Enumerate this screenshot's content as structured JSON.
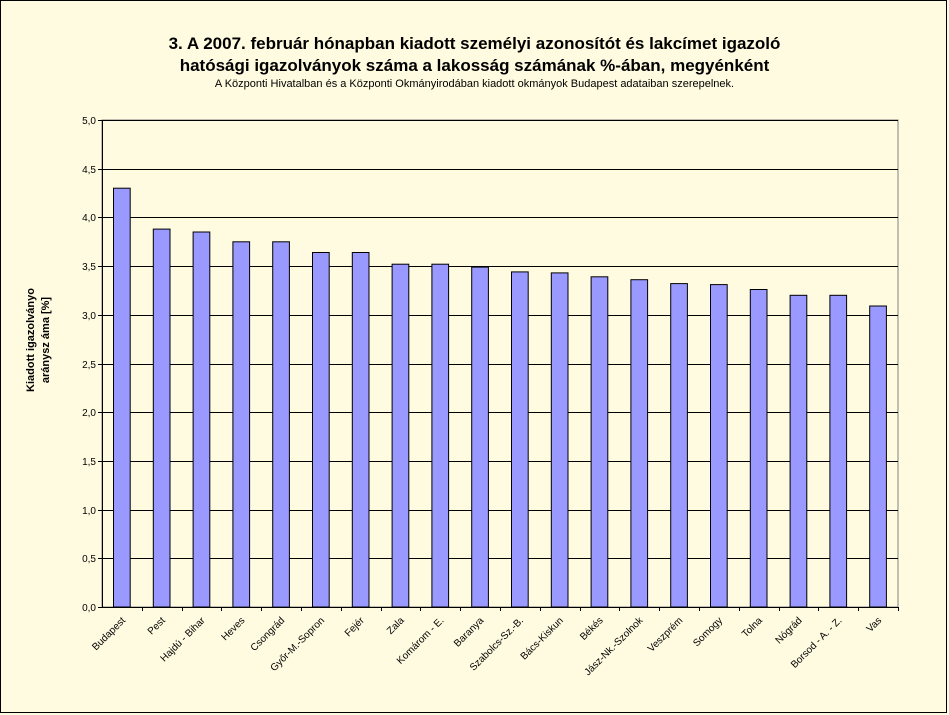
{
  "title_line1": "3. A 2007. február hónapban kiadott személyi azonosítót és lakcímet igazoló",
  "title_line2": "hatósági igazolványok száma a lakosság  számának %-ában, megyénként",
  "subtitle": "A Központi Hivatalban és a Központi Okmányirodában kiadott okmányok Budapest adataiban szerepelnek.",
  "chart_data": {
    "type": "bar",
    "title": "3. A 2007. február hónapban kiadott személyi azonosítót és lakcímet igazoló hatósági igazolványok száma a lakosság  számának %-ában, megyénként",
    "ylabel_lines": [
      "Kiadott igazolványo",
      "aránysz áma [%]"
    ],
    "categories": [
      "Budapest",
      "Pest",
      "Hajdú - Bihar",
      "Heves",
      "Csongrád",
      "Győr-M.-Sopron",
      "Fejér",
      "Zala",
      "Komárom - E.",
      "Baranya",
      "Szabolcs-Sz.-B.",
      "Bács-Kiskun",
      "Békés",
      "Jász-Nk.-Szolnok",
      "Veszprém",
      "Somogy",
      "Tolna",
      "Nógrád",
      "Borsod - A. - Z.",
      "Vas"
    ],
    "values": [
      4.3,
      3.88,
      3.85,
      3.75,
      3.75,
      3.64,
      3.64,
      3.52,
      3.52,
      3.49,
      3.44,
      3.43,
      3.39,
      3.36,
      3.32,
      3.31,
      3.26,
      3.2,
      3.2,
      3.09
    ],
    "ylim": [
      0,
      5
    ],
    "yticks": [
      "0,0",
      "0,5",
      "1,0",
      "1,5",
      "2,0",
      "2,5",
      "3,0",
      "3,5",
      "4,0",
      "4,5",
      "5,0"
    ],
    "grid": true,
    "bar_color": "#9999ff",
    "plot_background": "#fffbe0"
  }
}
